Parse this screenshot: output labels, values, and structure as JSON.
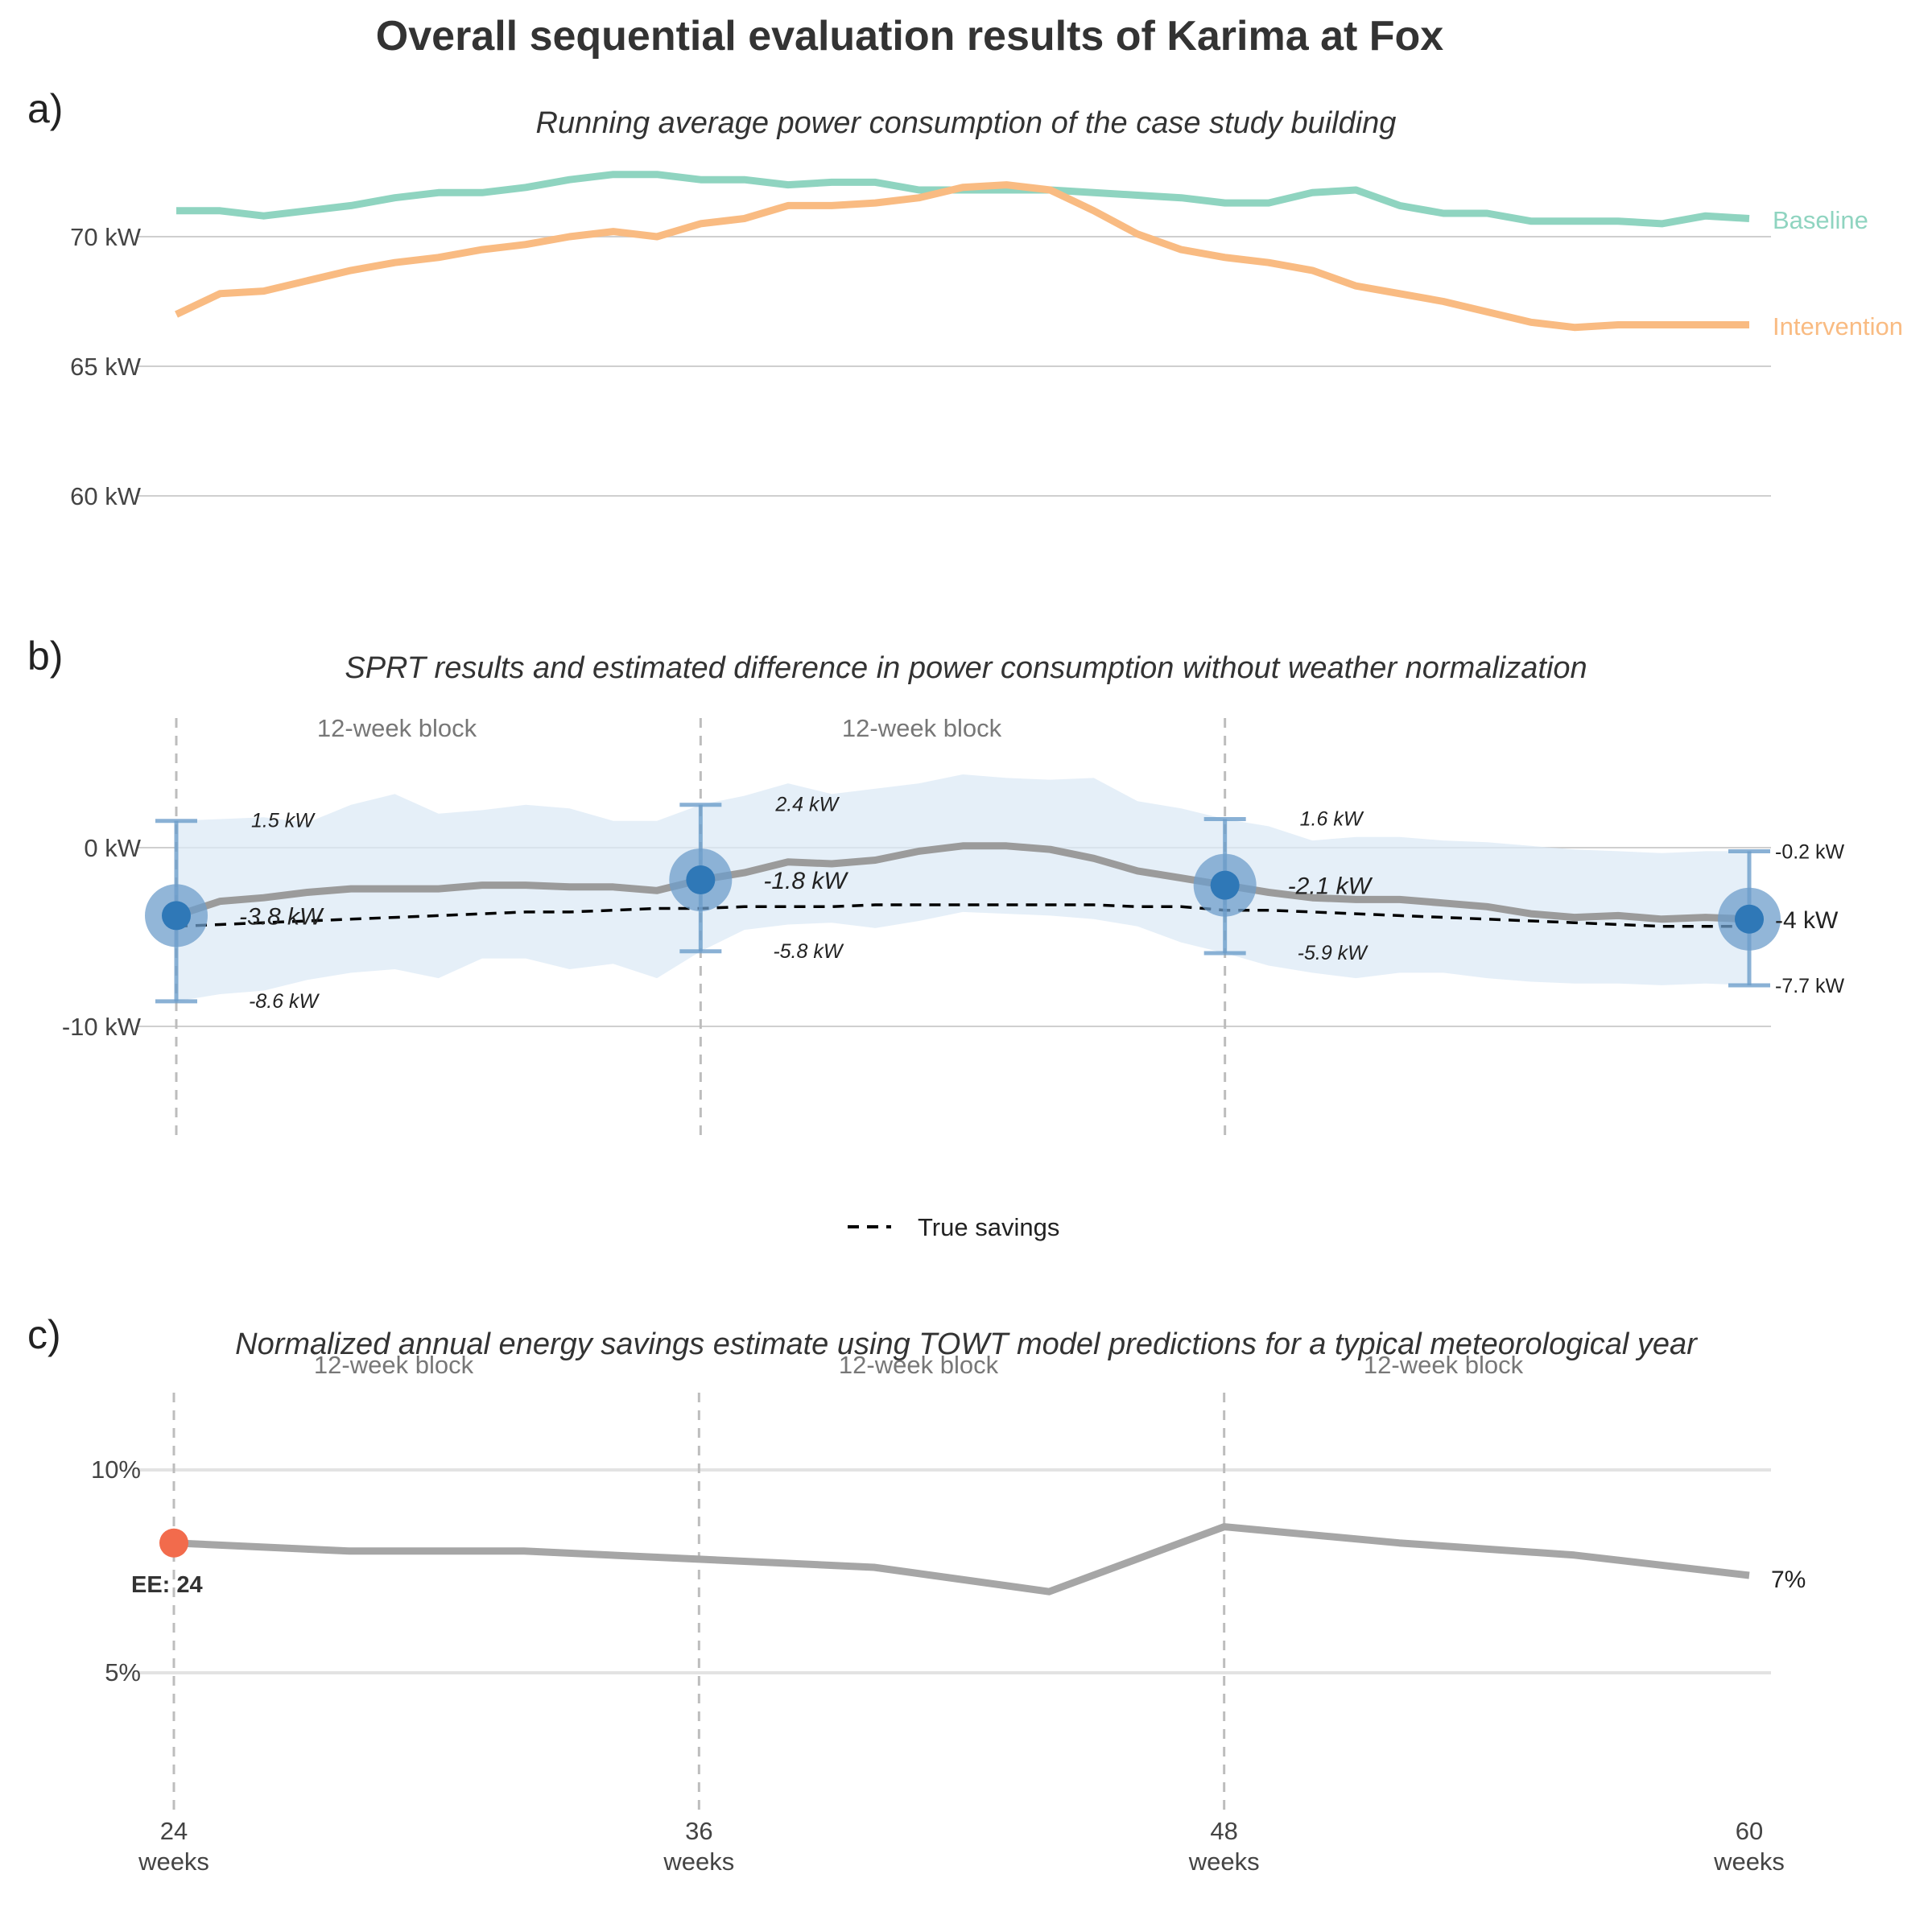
{
  "title": "Overall sequential evaluation results of Karima at Fox",
  "colors": {
    "baseline": "#8fd4c0",
    "intervention": "#f9bb82",
    "estimate_line": "#9b9b9b",
    "ci_band": "#dceaf5",
    "point": "#2f78b7",
    "point_halo": "#6d9ecb",
    "errorbar": "#6d9ecb",
    "true_savings": "#000000",
    "ee_point": "#f26b4c",
    "savings_line": "#a6a6a6"
  },
  "panel_a": {
    "letter": "a)",
    "subtitle": "Running average power consumption of the case study building",
    "y_ticks": [
      "60 kW",
      "65 kW",
      "70 kW"
    ]
  },
  "panel_b": {
    "letter": "b)",
    "subtitle": "SPRT results and estimated difference in power consumption without weather normalization",
    "y_ticks": [
      "-10 kW",
      "0 kW"
    ],
    "block_labels": [
      "12-week block",
      "12-week block"
    ],
    "legend_label": "True savings"
  },
  "panel_c": {
    "letter": "c)",
    "subtitle": "Normalized annual energy savings estimate using TOWT model predictions for a typical meteorological year",
    "y_ticks": [
      "5%",
      "10%"
    ],
    "block_labels": [
      "12-week block",
      "12-week block",
      "12-week block"
    ],
    "x_ticks": [
      {
        "value": 24,
        "line1": "24",
        "line2": "weeks"
      },
      {
        "value": 36,
        "line1": "36",
        "line2": "weeks"
      },
      {
        "value": 48,
        "line1": "48",
        "line2": "weeks"
      },
      {
        "value": 60,
        "line1": "60",
        "line2": "weeks"
      }
    ],
    "ee_label": "EE: 24"
  },
  "chart_data": [
    {
      "type": "line",
      "title": "Running average power consumption of the case study building",
      "x": [
        24,
        25,
        26,
        27,
        28,
        29,
        30,
        31,
        32,
        33,
        34,
        35,
        36,
        37,
        38,
        39,
        40,
        41,
        42,
        43,
        44,
        45,
        46,
        47,
        48,
        49,
        50,
        51,
        52,
        53,
        54,
        55,
        56,
        57,
        58,
        59,
        60
      ],
      "ylim": [
        59,
        73
      ],
      "series": [
        {
          "name": "Baseline",
          "values": [
            71.0,
            71.0,
            70.8,
            71.0,
            71.2,
            71.5,
            71.7,
            71.7,
            71.9,
            72.2,
            72.4,
            72.4,
            72.2,
            72.2,
            72.0,
            72.1,
            72.1,
            71.8,
            71.8,
            71.8,
            71.8,
            71.7,
            71.6,
            71.5,
            71.3,
            71.3,
            71.7,
            71.8,
            71.2,
            70.9,
            70.9,
            70.6,
            70.6,
            70.6,
            70.5,
            70.8,
            70.7
          ]
        },
        {
          "name": "Intervention",
          "values": [
            67.0,
            67.8,
            67.9,
            68.3,
            68.7,
            69.0,
            69.2,
            69.5,
            69.7,
            70.0,
            70.2,
            70.0,
            70.5,
            70.7,
            71.2,
            71.2,
            71.3,
            71.5,
            71.9,
            72.0,
            71.8,
            71.0,
            70.1,
            69.5,
            69.2,
            69.0,
            68.7,
            68.1,
            67.8,
            67.5,
            67.1,
            66.7,
            66.5,
            66.6,
            66.6,
            66.6,
            66.6
          ]
        }
      ]
    },
    {
      "type": "line",
      "title": "SPRT results and estimated difference in power consumption without weather normalization",
      "x": [
        24,
        25,
        26,
        27,
        28,
        29,
        30,
        31,
        32,
        33,
        34,
        35,
        36,
        37,
        38,
        39,
        40,
        41,
        42,
        43,
        44,
        45,
        46,
        47,
        48,
        49,
        50,
        51,
        52,
        53,
        54,
        55,
        56,
        57,
        58,
        59,
        60
      ],
      "ylim": [
        -16,
        6
      ],
      "series": [
        {
          "name": "Estimate",
          "values": [
            -3.8,
            -3.0,
            -2.8,
            -2.5,
            -2.3,
            -2.3,
            -2.3,
            -2.1,
            -2.1,
            -2.2,
            -2.2,
            -2.4,
            -1.8,
            -1.4,
            -0.8,
            -0.9,
            -0.7,
            -0.2,
            0.1,
            0.1,
            -0.1,
            -0.6,
            -1.3,
            -1.7,
            -2.1,
            -2.5,
            -2.8,
            -2.9,
            -2.9,
            -3.1,
            -3.3,
            -3.7,
            -3.9,
            -3.8,
            -4.0,
            -3.9,
            -4.0
          ]
        },
        {
          "name": "CI upper",
          "values": [
            1.5,
            1.6,
            1.7,
            1.4,
            2.4,
            3.0,
            1.9,
            2.1,
            2.4,
            2.2,
            1.5,
            1.5,
            2.4,
            2.9,
            3.6,
            3.0,
            3.3,
            3.6,
            4.1,
            3.9,
            3.8,
            3.9,
            2.6,
            2.2,
            1.6,
            1.2,
            0.4,
            0.6,
            0.6,
            0.4,
            0.3,
            0.1,
            -0.1,
            -0.2,
            -0.3,
            -0.2,
            -0.2
          ]
        },
        {
          "name": "CI lower",
          "values": [
            -8.6,
            -8.2,
            -8.0,
            -7.4,
            -7.0,
            -6.8,
            -7.3,
            -6.2,
            -6.2,
            -6.8,
            -6.5,
            -7.3,
            -5.8,
            -4.6,
            -4.3,
            -4.2,
            -4.5,
            -4.1,
            -3.6,
            -3.7,
            -3.8,
            -4.0,
            -4.4,
            -5.3,
            -5.9,
            -6.6,
            -7.0,
            -7.3,
            -7.0,
            -7.0,
            -7.3,
            -7.5,
            -7.6,
            -7.6,
            -7.7,
            -7.6,
            -7.7
          ]
        },
        {
          "name": "True savings",
          "values": [
            -4.4,
            -4.3,
            -4.2,
            -4.1,
            -4.0,
            -3.9,
            -3.8,
            -3.7,
            -3.6,
            -3.6,
            -3.5,
            -3.4,
            -3.4,
            -3.3,
            -3.3,
            -3.3,
            -3.2,
            -3.2,
            -3.2,
            -3.2,
            -3.2,
            -3.2,
            -3.3,
            -3.3,
            -3.5,
            -3.5,
            -3.6,
            -3.7,
            -3.8,
            -3.9,
            -4.0,
            -4.1,
            -4.2,
            -4.3,
            -4.4,
            -4.4,
            -4.4
          ]
        }
      ],
      "checkpoints": [
        {
          "x": 24,
          "estimate": -3.8,
          "upper": 1.5,
          "lower": -8.6,
          "estimate_label": "-3.8 kW",
          "upper_label": "1.5 kW",
          "lower_label": "-8.6 kW"
        },
        {
          "x": 36,
          "estimate": -1.8,
          "upper": 2.4,
          "lower": -5.8,
          "estimate_label": "-1.8 kW",
          "upper_label": "2.4 kW",
          "lower_label": "-5.8 kW"
        },
        {
          "x": 48,
          "estimate": -2.1,
          "upper": 1.6,
          "lower": -5.9,
          "estimate_label": "-2.1 kW",
          "upper_label": "1.6 kW",
          "lower_label": "-5.9 kW"
        },
        {
          "x": 60,
          "estimate": -4.0,
          "upper": -0.2,
          "lower": -7.7,
          "estimate_label": "-4 kW",
          "upper_label": "-0.2 kW",
          "lower_label": "-7.7 kW"
        }
      ]
    },
    {
      "type": "line",
      "title": "Normalized annual energy savings estimate using TOWT model predictions for a typical meteorological year",
      "x": [
        24,
        28,
        32,
        36,
        40,
        44,
        48,
        52,
        56,
        60
      ],
      "values": [
        8.2,
        8.0,
        8.0,
        7.8,
        7.6,
        7.0,
        8.6,
        8.2,
        7.9,
        7.4
      ],
      "ylim": [
        2,
        12
      ],
      "end_label": "7%",
      "ee_point": {
        "x": 24,
        "value": 8.2,
        "label": "EE: 24"
      }
    }
  ]
}
